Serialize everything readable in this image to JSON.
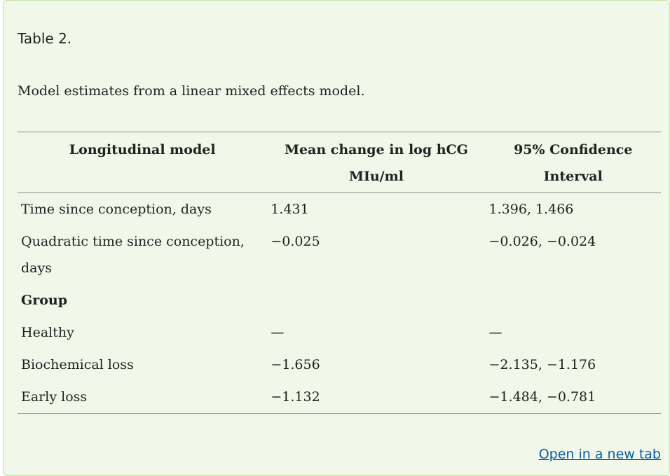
{
  "caption": {
    "title": "Table 2.",
    "description": "Model estimates from a linear mixed effects model."
  },
  "table": {
    "headers": [
      "Longitudinal model",
      "Mean change in log hCG MIu/ml",
      "95% Confidence Interval"
    ],
    "rows": [
      {
        "label": "Time since conception, days",
        "mean": "1.431",
        "ci": "1.396, 1.466"
      },
      {
        "label": "Quadratic time since conception, days",
        "mean": "−0.025",
        "ci": "−0.026, −0.024"
      },
      {
        "label": "Group",
        "mean": "",
        "ci": ""
      },
      {
        "label": "Healthy",
        "mean": "—",
        "ci": "—"
      },
      {
        "label": "Biochemical loss",
        "mean": "−1.656",
        "ci": "−2.135, −1.176"
      },
      {
        "label": "Early loss",
        "mean": "−1.132",
        "ci": "−1.484, −0.781"
      }
    ]
  },
  "link": {
    "open_new_tab": "Open in a new tab"
  },
  "colors": {
    "panel_bg": "#f1f8e9",
    "panel_border": "#c5e1a5",
    "link": "#0b5ea8"
  }
}
